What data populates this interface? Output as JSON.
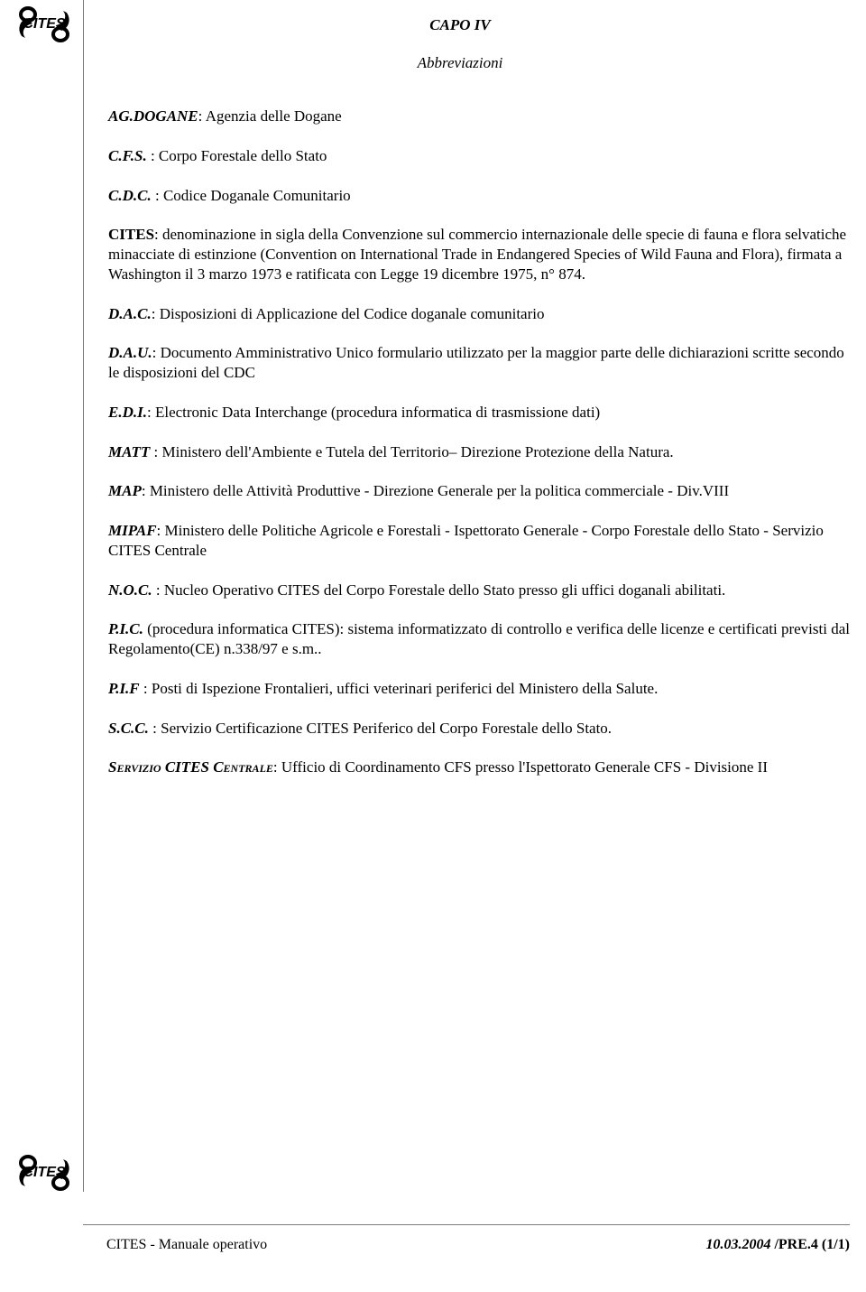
{
  "chapter": "CAPO IV",
  "subtitle": "Abbreviazioni",
  "logo_text": "CITES",
  "entries": [
    {
      "term": "AG.DOGANE",
      "sep": ": ",
      "desc": "Agenzia delle Dogane"
    },
    {
      "term": "C.F.S.",
      "sep": " : ",
      "desc": "Corpo Forestale dello Stato"
    },
    {
      "term": "C.D.C.",
      "sep": " : ",
      "desc": "Codice Doganale Comunitario"
    },
    {
      "term": "CITES",
      "plain_term": true,
      "sep": ": ",
      "desc": "denominazione in sigla della Convenzione sul commercio internazionale delle specie di fauna e  flora selvatiche minacciate di estinzione (Convention on International Trade in Endangered Species of Wild Fauna and Flora), firmata a Washington il 3 marzo 1973 e ratificata con Legge 19 dicembre 1975, n°  874."
    },
    {
      "term": "D.A.C.",
      "sep": ": ",
      "desc": "Disposizioni di Applicazione  del Codice doganale comunitario"
    },
    {
      "term": "D.A.U.",
      "sep": ": ",
      "desc": "Documento Amministrativo Unico  formulario utilizzato per la maggior parte delle dichiarazioni scritte secondo le disposizioni del CDC"
    },
    {
      "term": "E.D.I.",
      "sep": ": ",
      "desc": "Electronic Data Interchange (procedura informatica di trasmissione dati)"
    },
    {
      "term": "MATT",
      "sep": " : ",
      "desc": "Ministero dell'Ambiente e Tutela del Territorio– Direzione Protezione della Natura."
    },
    {
      "term": "MAP",
      "sep": ": ",
      "desc": "Ministero delle Attività Produttive - Direzione Generale per la politica commerciale - Div.VIII"
    },
    {
      "term": "MIPAF",
      "sep": ": ",
      "desc": "Ministero  delle  Politiche Agricole e Forestali - Ispettorato Generale - Corpo Forestale dello Stato - Servizio CITES Centrale"
    },
    {
      "term": "N.O.C.",
      "sep": " : ",
      "desc": "Nucleo Operativo CITES del  Corpo  Forestale dello Stato presso gli uffici doganali abilitati."
    },
    {
      "term": "P.I.C.",
      "sep": " ",
      "desc": "(procedura informatica CITES): sistema informatizzato di controllo e verifica delle licenze e certificati previsti dal Regolamento(CE) n.338/97 e s.m.."
    },
    {
      "term": "P.I.F",
      "sep": " : ",
      "desc": "Posti di Ispezione Frontalieri, uffici veterinari periferici  del Ministero della Salute."
    },
    {
      "term": "S.C.C.",
      "sep": " : ",
      "desc": "Servizio Certificazione CITES Periferico del Corpo Forestale dello Stato."
    },
    {
      "term": "Servizio CITES Centrale",
      "smallcaps": true,
      "sep": ": ",
      "desc": "Ufficio di Coordinamento CFS presso l'Ispettorato Generale CFS -  Divisione II"
    }
  ],
  "footer_left": "CITES - Manuale operativo",
  "footer_right_date": "10.03.2004 ",
  "footer_right_code": "/PRE.4   (1/1)"
}
